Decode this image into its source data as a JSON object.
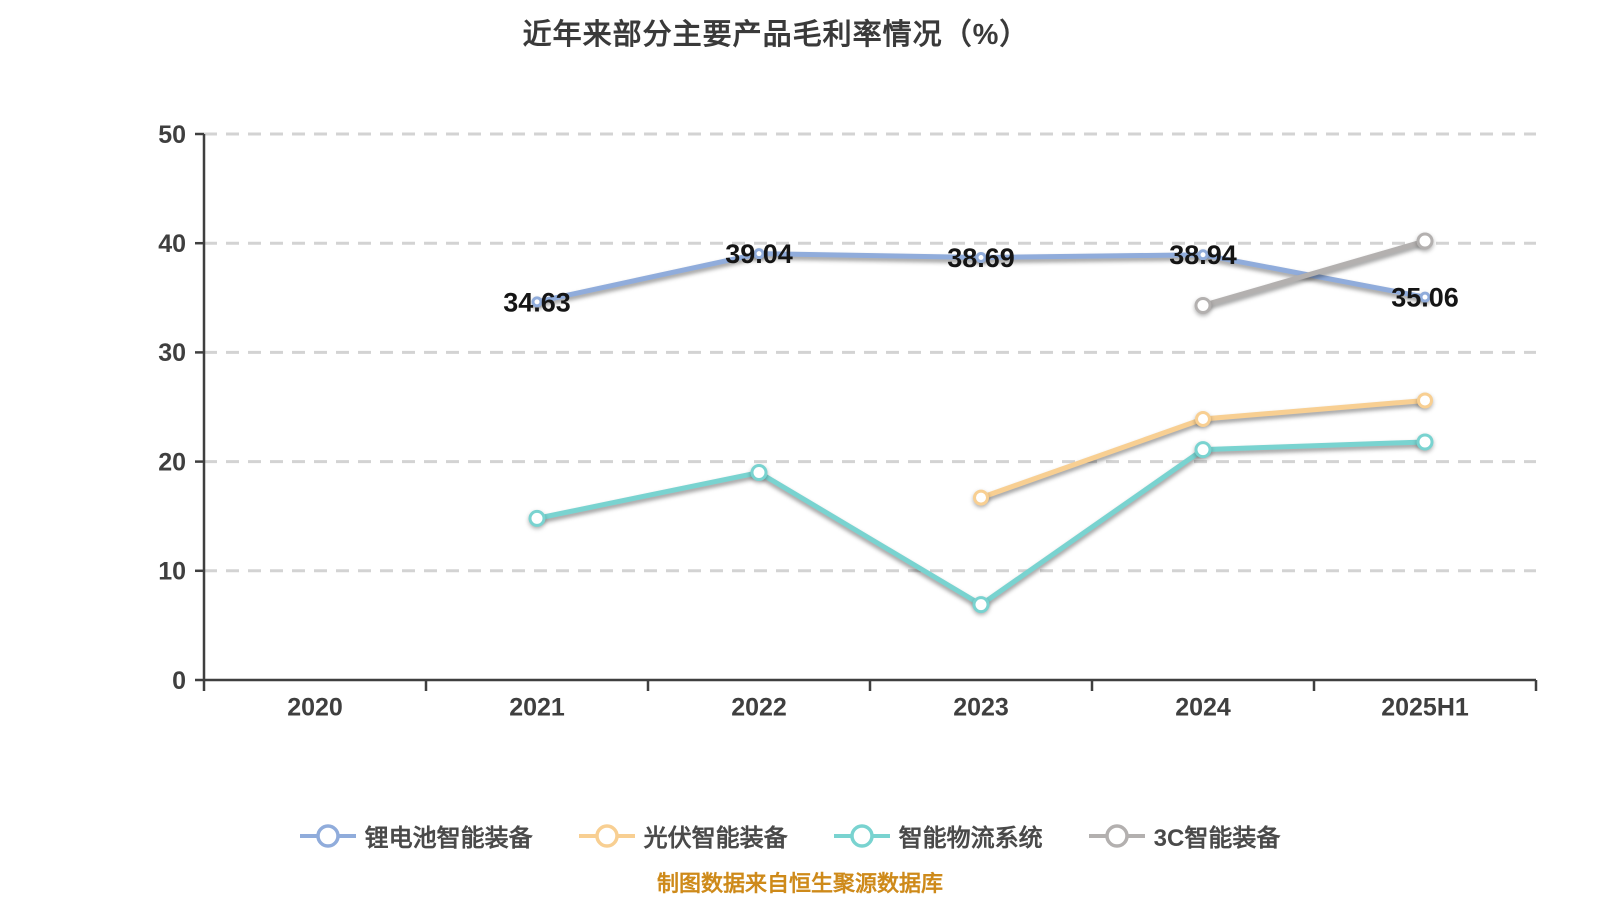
{
  "title": "近年来部分主要产品毛利率情况（%）",
  "footer_note": "制图数据来自恒生聚源数据库",
  "style": {
    "axis_color": "#3f3f3f",
    "grid_color": "#d3d3d3",
    "tick_label_color": "#3f3f3f",
    "data_label_color": "#151515",
    "title_color": "#3a3a3a",
    "legend_text_color": "#4a4a4a",
    "footer_color": "#ce8a1a",
    "background": "#ffffff",
    "point_fill": "#ffffff"
  },
  "chart_data": {
    "type": "line",
    "title": "近年来部分主要产品毛利率情况（%）",
    "xlabel": "",
    "ylabel": "",
    "categories": [
      "2020",
      "2021",
      "2022",
      "2023",
      "2024",
      "2025H1"
    ],
    "ylim": [
      0,
      50
    ],
    "yticks": [
      0,
      10,
      20,
      30,
      40,
      50
    ],
    "grid": "horizontal-dashed",
    "legend_position": "bottom",
    "series": [
      {
        "key": "li-battery-equipment",
        "name": "锂电池智能装备",
        "color": "#90acdb",
        "marker_radius": 4,
        "values": [
          null,
          34.63,
          39.04,
          38.69,
          38.94,
          35.06
        ],
        "labels": [
          null,
          "34.63",
          "39.04",
          "38.69",
          "38.94",
          "35.06"
        ]
      },
      {
        "key": "pv-equipment",
        "name": "光伏智能装备",
        "color": "#f8cf92",
        "marker_radius": 6.5,
        "values": [
          null,
          null,
          null,
          16.7,
          23.9,
          25.6
        ],
        "labels": null
      },
      {
        "key": "logistics-system",
        "name": "智能物流系统",
        "color": "#79d3d0",
        "marker_radius": 7,
        "values": [
          null,
          14.8,
          19.0,
          6.9,
          21.1,
          21.8
        ],
        "labels": null
      },
      {
        "key": "3c-equipment",
        "name": "3C智能装备",
        "color": "#b3b0af",
        "marker_radius": 7,
        "values": [
          null,
          null,
          null,
          null,
          34.3,
          40.2
        ],
        "labels": null
      }
    ]
  }
}
